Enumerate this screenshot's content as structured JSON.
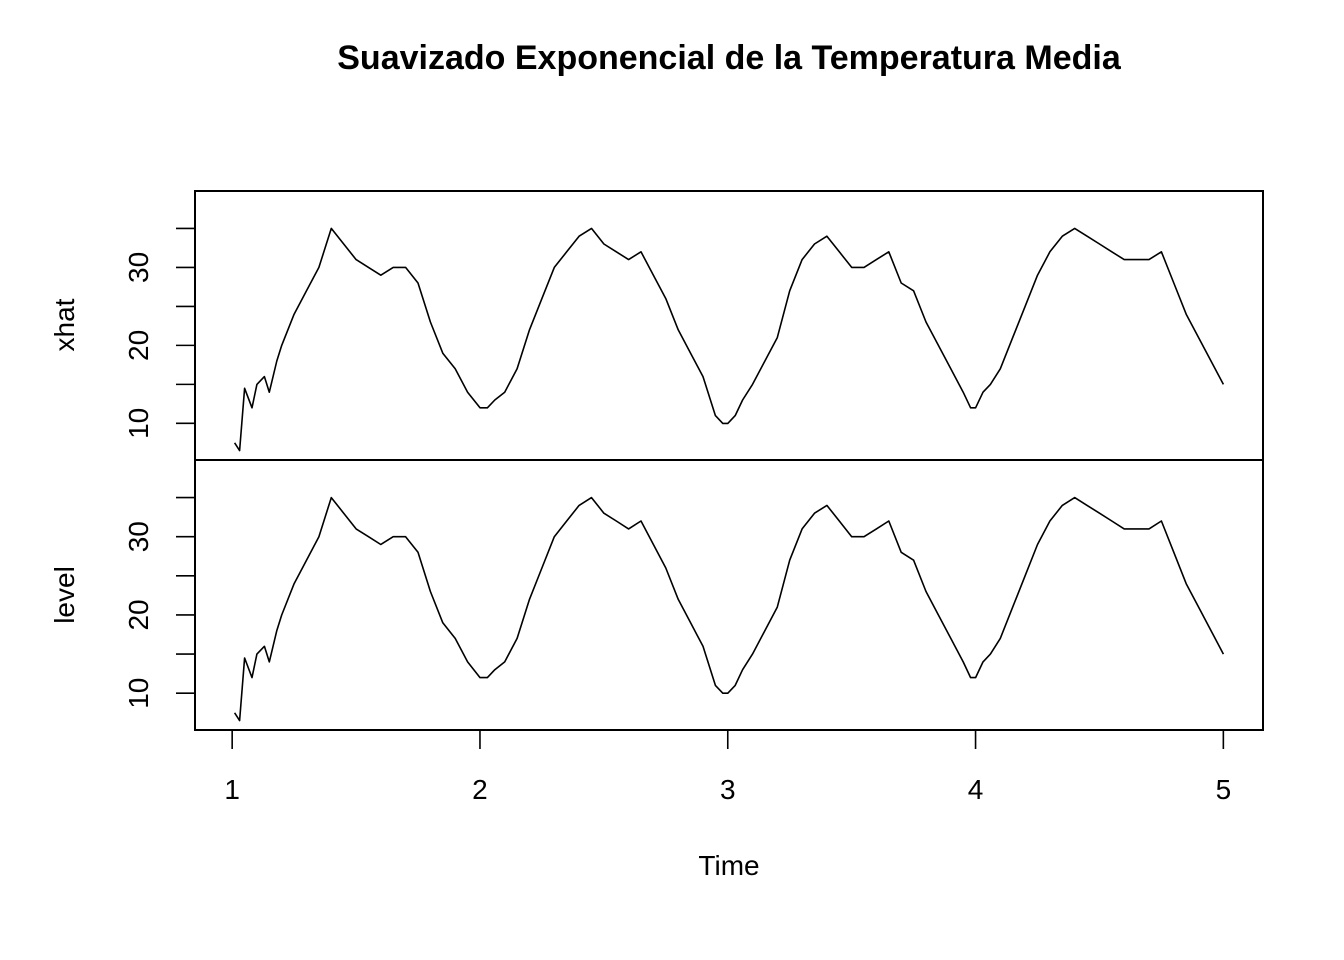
{
  "chart_data": {
    "type": "line",
    "title": "Suavizado Exponencial de la Temperatura Media",
    "xlabel": "Time",
    "xlim": [
      0.85,
      5.16
    ],
    "x_ticks": [
      1,
      2,
      3,
      4,
      5
    ],
    "x_tick_labels": [
      "1",
      "2",
      "3",
      "4",
      "5"
    ],
    "panels": [
      {
        "ylabel": "xhat",
        "ylim": [
          5.3,
          39.8
        ],
        "y_ticks_major": [
          10,
          20,
          30
        ],
        "y_tick_labels": [
          "10",
          "20",
          "30"
        ],
        "y_ticks_all": [
          10,
          15,
          20,
          25,
          30,
          35
        ]
      },
      {
        "ylabel": "level",
        "ylim": [
          5.3,
          39.8
        ],
        "y_ticks_major": [
          10,
          20,
          30
        ],
        "y_tick_labels": [
          "10",
          "20",
          "30"
        ],
        "y_ticks_all": [
          10,
          15,
          20,
          25,
          30,
          35
        ]
      }
    ],
    "series": [
      {
        "panel": 0,
        "x": [
          1.01,
          1.03,
          1.05,
          1.08,
          1.1,
          1.13,
          1.15,
          1.18,
          1.2,
          1.25,
          1.3,
          1.35,
          1.4,
          1.45,
          1.5,
          1.55,
          1.6,
          1.65,
          1.7,
          1.75,
          1.8,
          1.85,
          1.9,
          1.95,
          2.0,
          2.03,
          2.06,
          2.1,
          2.15,
          2.2,
          2.25,
          2.3,
          2.35,
          2.4,
          2.45,
          2.5,
          2.55,
          2.6,
          2.65,
          2.7,
          2.75,
          2.8,
          2.85,
          2.9,
          2.95,
          2.98,
          3.0,
          3.03,
          3.06,
          3.1,
          3.15,
          3.2,
          3.25,
          3.3,
          3.35,
          3.4,
          3.45,
          3.5,
          3.55,
          3.6,
          3.65,
          3.7,
          3.75,
          3.8,
          3.85,
          3.9,
          3.95,
          3.98,
          4.0,
          4.03,
          4.06,
          4.1,
          4.15,
          4.2,
          4.25,
          4.3,
          4.35,
          4.4,
          4.45,
          4.5,
          4.55,
          4.6,
          4.65,
          4.7,
          4.75,
          4.8,
          4.85,
          4.9,
          4.95,
          5.0
        ],
        "y": [
          7.5,
          6.5,
          14.5,
          12,
          15,
          16,
          14,
          18,
          20,
          24,
          27,
          30,
          35,
          33,
          31,
          30,
          29,
          30,
          30,
          28,
          23,
          19,
          17,
          14,
          12,
          12,
          13,
          14,
          17,
          22,
          26,
          30,
          32,
          34,
          35,
          33,
          32,
          31,
          32,
          29,
          26,
          22,
          19,
          16,
          11,
          10,
          10,
          11,
          13,
          15,
          18,
          21,
          27,
          31,
          33,
          34,
          32,
          30,
          30,
          31,
          32,
          28,
          27,
          23,
          20,
          17,
          14,
          12,
          12,
          14,
          15,
          17,
          21,
          25,
          29,
          32,
          34,
          35,
          34,
          33,
          32,
          31,
          31,
          31,
          32,
          28,
          24,
          21,
          18,
          15
        ]
      },
      {
        "panel": 1,
        "x": [
          1.01,
          1.03,
          1.05,
          1.08,
          1.1,
          1.13,
          1.15,
          1.18,
          1.2,
          1.25,
          1.3,
          1.35,
          1.4,
          1.45,
          1.5,
          1.55,
          1.6,
          1.65,
          1.7,
          1.75,
          1.8,
          1.85,
          1.9,
          1.95,
          2.0,
          2.03,
          2.06,
          2.1,
          2.15,
          2.2,
          2.25,
          2.3,
          2.35,
          2.4,
          2.45,
          2.5,
          2.55,
          2.6,
          2.65,
          2.7,
          2.75,
          2.8,
          2.85,
          2.9,
          2.95,
          2.98,
          3.0,
          3.03,
          3.06,
          3.1,
          3.15,
          3.2,
          3.25,
          3.3,
          3.35,
          3.4,
          3.45,
          3.5,
          3.55,
          3.6,
          3.65,
          3.7,
          3.75,
          3.8,
          3.85,
          3.9,
          3.95,
          3.98,
          4.0,
          4.03,
          4.06,
          4.1,
          4.15,
          4.2,
          4.25,
          4.3,
          4.35,
          4.4,
          4.45,
          4.5,
          4.55,
          4.6,
          4.65,
          4.7,
          4.75,
          4.8,
          4.85,
          4.9,
          4.95,
          5.0
        ],
        "y": [
          7.5,
          6.5,
          14.5,
          12,
          15,
          16,
          14,
          18,
          20,
          24,
          27,
          30,
          35,
          33,
          31,
          30,
          29,
          30,
          30,
          28,
          23,
          19,
          17,
          14,
          12,
          12,
          13,
          14,
          17,
          22,
          26,
          30,
          32,
          34,
          35,
          33,
          32,
          31,
          32,
          29,
          26,
          22,
          19,
          16,
          11,
          10,
          10,
          11,
          13,
          15,
          18,
          21,
          27,
          31,
          33,
          34,
          32,
          30,
          30,
          31,
          32,
          28,
          27,
          23,
          20,
          17,
          14,
          12,
          12,
          14,
          15,
          17,
          21,
          25,
          29,
          32,
          34,
          35,
          34,
          33,
          32,
          31,
          31,
          31,
          32,
          28,
          24,
          21,
          18,
          15
        ]
      }
    ]
  }
}
